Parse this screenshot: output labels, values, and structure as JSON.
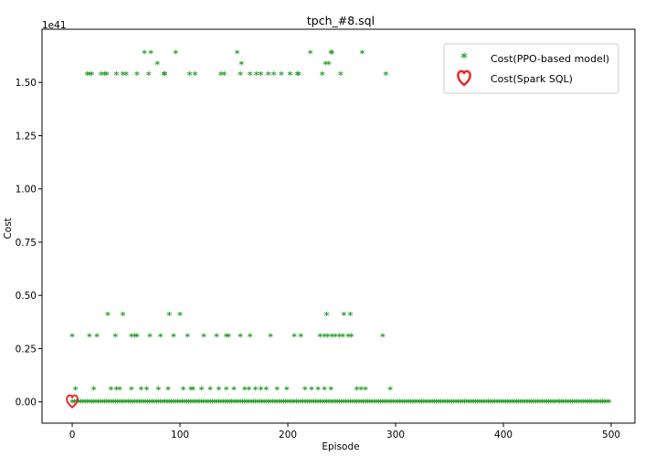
{
  "chart_data": {
    "type": "scatter",
    "title": "tpch_#8.sql",
    "xlabel": "Episode",
    "ylabel": "Cost",
    "y_offset_text": "1e41",
    "xlim": [
      -28,
      522
    ],
    "ylim": [
      -0.1,
      1.75
    ],
    "y_scale": 1e+41,
    "xticks": [
      0,
      100,
      200,
      300,
      400,
      500
    ],
    "yticks": [
      0.0,
      0.25,
      0.5,
      0.75,
      1.0,
      1.25,
      1.5
    ],
    "ytick_labels": [
      "0.00",
      "0.25",
      "0.50",
      "0.75",
      "1.00",
      "1.25",
      "1.50"
    ],
    "grid": false,
    "legend_position": "top-right",
    "series": [
      {
        "name": "Cost(PPO-based model)",
        "marker": "asterisk",
        "color": "#2ca02c",
        "points_high_top": [
          [
            67,
            1.64
          ],
          [
            73,
            1.64
          ],
          [
            96,
            1.64
          ],
          [
            153,
            1.64
          ],
          [
            221,
            1.64
          ],
          [
            240,
            1.64
          ],
          [
            241,
            1.64
          ],
          [
            269,
            1.64
          ]
        ],
        "points_high": [
          [
            14,
            1.54
          ],
          [
            16,
            1.54
          ],
          [
            18,
            1.54
          ],
          [
            27,
            1.54
          ],
          [
            30,
            1.54
          ],
          [
            32,
            1.54
          ],
          [
            41,
            1.54
          ],
          [
            47,
            1.54
          ],
          [
            50,
            1.54
          ],
          [
            60,
            1.54
          ],
          [
            71,
            1.54
          ],
          [
            85,
            1.54
          ],
          [
            86,
            1.54
          ],
          [
            109,
            1.54
          ],
          [
            114,
            1.54
          ],
          [
            138,
            1.54
          ],
          [
            141,
            1.54
          ],
          [
            156,
            1.54
          ],
          [
            165,
            1.54
          ],
          [
            171,
            1.54
          ],
          [
            175,
            1.54
          ],
          [
            182,
            1.54
          ],
          [
            187,
            1.54
          ],
          [
            194,
            1.54
          ],
          [
            202,
            1.54
          ],
          [
            209,
            1.54
          ],
          [
            210,
            1.54
          ],
          [
            232,
            1.54
          ],
          [
            249,
            1.54
          ],
          [
            291,
            1.54
          ]
        ],
        "points_high_mid": [
          [
            79,
            1.59
          ],
          [
            157,
            1.59
          ],
          [
            235,
            1.59
          ],
          [
            238,
            1.59
          ]
        ],
        "points_mid_upper": [
          [
            33,
            0.41
          ],
          [
            47,
            0.41
          ],
          [
            90,
            0.41
          ],
          [
            100,
            0.41
          ],
          [
            236,
            0.41
          ],
          [
            252,
            0.41
          ],
          [
            258,
            0.41
          ]
        ],
        "points_mid": [
          [
            0,
            0.31
          ],
          [
            16,
            0.31
          ],
          [
            23,
            0.31
          ],
          [
            40,
            0.31
          ],
          [
            55,
            0.31
          ],
          [
            58,
            0.31
          ],
          [
            60,
            0.31
          ],
          [
            72,
            0.31
          ],
          [
            82,
            0.31
          ],
          [
            94,
            0.31
          ],
          [
            107,
            0.31
          ],
          [
            122,
            0.31
          ],
          [
            134,
            0.31
          ],
          [
            143,
            0.31
          ],
          [
            145,
            0.31
          ],
          [
            156,
            0.31
          ],
          [
            165,
            0.31
          ],
          [
            184,
            0.31
          ],
          [
            206,
            0.31
          ],
          [
            212,
            0.31
          ],
          [
            230,
            0.31
          ],
          [
            234,
            0.31
          ],
          [
            237,
            0.31
          ],
          [
            241,
            0.31
          ],
          [
            244,
            0.31
          ],
          [
            248,
            0.31
          ],
          [
            251,
            0.31
          ],
          [
            256,
            0.31
          ],
          [
            259,
            0.31
          ],
          [
            288,
            0.31
          ]
        ],
        "points_low": [
          [
            3,
            0.06
          ],
          [
            20,
            0.06
          ],
          [
            36,
            0.06
          ],
          [
            41,
            0.06
          ],
          [
            44,
            0.06
          ],
          [
            55,
            0.06
          ],
          [
            64,
            0.06
          ],
          [
            69,
            0.06
          ],
          [
            80,
            0.06
          ],
          [
            89,
            0.06
          ],
          [
            103,
            0.06
          ],
          [
            110,
            0.06
          ],
          [
            112,
            0.06
          ],
          [
            120,
            0.06
          ],
          [
            128,
            0.06
          ],
          [
            136,
            0.06
          ],
          [
            143,
            0.06
          ],
          [
            150,
            0.06
          ],
          [
            160,
            0.06
          ],
          [
            164,
            0.06
          ],
          [
            170,
            0.06
          ],
          [
            175,
            0.06
          ],
          [
            180,
            0.06
          ],
          [
            190,
            0.06
          ],
          [
            199,
            0.06
          ],
          [
            216,
            0.06
          ],
          [
            222,
            0.06
          ],
          [
            228,
            0.06
          ],
          [
            234,
            0.06
          ],
          [
            240,
            0.06
          ],
          [
            264,
            0.06
          ],
          [
            268,
            0.06
          ],
          [
            272,
            0.06
          ],
          [
            295,
            0.06
          ]
        ],
        "points_zero_range": {
          "x_from": 0,
          "x_to": 499,
          "step": 2,
          "y": 0
        }
      },
      {
        "name": "Cost(Spark SQL)",
        "marker": "heart",
        "color": "#e8282a",
        "points": [
          [
            0,
            0.0
          ]
        ]
      }
    ]
  }
}
